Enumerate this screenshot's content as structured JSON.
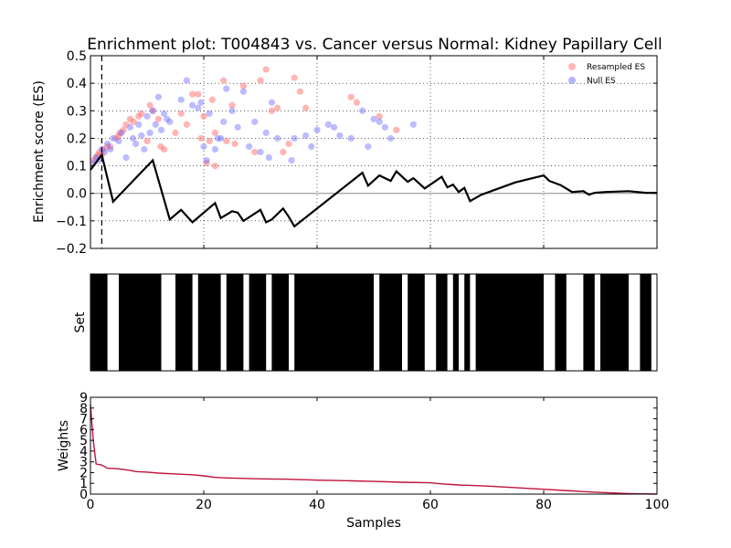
{
  "title": "Enrichment plot: T004843 vs. Cancer versus Normal: Kidney Papillary Cell",
  "colors": {
    "resampled": "#ff6b6b",
    "null": "#6b6bff",
    "es_line": "#000000",
    "weights_line": "#c0123c",
    "set_bar": "#000000"
  },
  "chart_data": [
    {
      "type": "line",
      "panel": "enrichment",
      "ylabel": "Enrichment score (ES)",
      "xlim": [
        0,
        100
      ],
      "ylim": [
        -0.2,
        0.5
      ],
      "yticks": [
        "0.5",
        "0.4",
        "0.3",
        "0.2",
        "0.1",
        "0.0",
        "−0.1",
        "−0.2"
      ],
      "ytick_values": [
        0.5,
        0.4,
        0.3,
        0.2,
        0.1,
        0.0,
        -0.1,
        -0.2
      ],
      "grid": true,
      "legend": {
        "placement": "top-right",
        "entries": [
          "Resampled ES",
          "Null ES"
        ]
      },
      "max_es_x": 2,
      "es_curve": {
        "x": [
          0,
          2,
          4,
          11,
          14,
          16,
          18,
          22,
          23,
          25,
          26,
          27,
          30,
          31,
          32,
          34,
          35,
          36,
          48,
          49,
          51,
          53,
          54,
          56,
          57,
          59,
          62,
          63,
          64,
          65,
          66,
          67,
          69,
          71,
          75,
          80,
          81,
          83,
          85,
          87,
          88,
          89,
          91,
          95,
          98,
          100
        ],
        "y": [
          0.085,
          0.14,
          -0.03,
          0.12,
          -0.095,
          -0.06,
          -0.105,
          -0.035,
          -0.09,
          -0.065,
          -0.07,
          -0.1,
          -0.06,
          -0.105,
          -0.095,
          -0.055,
          -0.085,
          -0.12,
          0.075,
          0.028,
          0.065,
          0.045,
          0.08,
          0.042,
          0.055,
          0.018,
          0.06,
          0.022,
          0.032,
          0.005,
          0.02,
          -0.028,
          -0.005,
          0.01,
          0.04,
          0.065,
          0.045,
          0.03,
          0.005,
          0.008,
          -0.005,
          0.002,
          0.005,
          0.008,
          0.002,
          0.002
        ]
      },
      "resampled_es": {
        "x": [
          0.5,
          1,
          1.3,
          1.6,
          2,
          2.3,
          3,
          3.5,
          4.5,
          5,
          5.2,
          5.8,
          6.3,
          7,
          7.6,
          8.5,
          9,
          10,
          10.5,
          11,
          12,
          12.4,
          13,
          15,
          16,
          17,
          18,
          19,
          19.5,
          20,
          20.5,
          21,
          21.5,
          22,
          22,
          23.5,
          24,
          25,
          25.5,
          27,
          29,
          30,
          31,
          32,
          33,
          34,
          35,
          36,
          37,
          38,
          46,
          47,
          51,
          54
        ],
        "y": [
          0.12,
          0.13,
          0.14,
          0.15,
          0.14,
          0.16,
          0.17,
          0.17,
          0.2,
          0.21,
          0.22,
          0.23,
          0.25,
          0.27,
          0.26,
          0.28,
          0.29,
          0.19,
          0.32,
          0.3,
          0.27,
          0.17,
          0.16,
          0.22,
          0.29,
          0.25,
          0.36,
          0.36,
          0.2,
          0.28,
          0.11,
          0.19,
          0.34,
          0.1,
          0.22,
          0.41,
          0.19,
          0.32,
          0.18,
          0.39,
          0.15,
          0.41,
          0.45,
          0.3,
          0.31,
          0.15,
          0.18,
          0.42,
          0.37,
          0.31,
          0.35,
          0.33,
          0.28,
          0.23
        ]
      },
      "null_es": {
        "x": [
          0.5,
          1,
          1.5,
          2,
          2.5,
          3,
          3.5,
          4,
          5,
          5.5,
          6.3,
          7,
          7.5,
          8,
          8.5,
          9,
          9.5,
          10,
          10.5,
          11,
          11.5,
          12,
          12.5,
          13,
          13.5,
          14,
          16,
          17,
          18,
          19,
          19.5,
          20,
          20.5,
          21,
          22,
          22.5,
          23,
          23.5,
          24,
          25,
          26,
          27,
          28,
          29,
          30,
          31,
          31.5,
          32,
          33,
          35.5,
          36,
          38,
          39,
          40,
          42,
          43,
          44,
          46,
          48,
          49,
          50,
          51,
          52,
          53,
          57
        ],
        "y": [
          0.11,
          0.13,
          0.12,
          0.16,
          0.15,
          0.18,
          0.16,
          0.2,
          0.19,
          0.22,
          0.13,
          0.24,
          0.2,
          0.18,
          0.25,
          0.21,
          0.16,
          0.28,
          0.22,
          0.3,
          0.25,
          0.35,
          0.23,
          0.29,
          0.27,
          0.26,
          0.34,
          0.41,
          0.32,
          0.31,
          0.33,
          0.17,
          0.12,
          0.29,
          0.16,
          0.2,
          0.2,
          0.26,
          0.38,
          0.3,
          0.24,
          0.37,
          0.17,
          0.26,
          0.15,
          0.22,
          0.13,
          0.33,
          0.2,
          0.12,
          0.2,
          0.21,
          0.17,
          0.23,
          0.25,
          0.24,
          0.21,
          0.2,
          0.3,
          0.17,
          0.27,
          0.26,
          0.24,
          0.2,
          0.25
        ]
      }
    },
    {
      "type": "bar",
      "panel": "set",
      "ylabel": "Set",
      "xlim": [
        0,
        100
      ],
      "white_gaps": [
        [
          3,
          5
        ],
        [
          12.5,
          15
        ],
        [
          18,
          19
        ],
        [
          23,
          24
        ],
        [
          27,
          28
        ],
        [
          31,
          32
        ],
        [
          35,
          36
        ],
        [
          50,
          51
        ],
        [
          55,
          56
        ],
        [
          59,
          61
        ],
        [
          63,
          64
        ],
        [
          65,
          66
        ],
        [
          67,
          68
        ],
        [
          80,
          82
        ],
        [
          84,
          87
        ],
        [
          89,
          90
        ],
        [
          95,
          97
        ],
        [
          99,
          100
        ]
      ]
    },
    {
      "type": "line",
      "panel": "weights",
      "xlabel": "Samples",
      "ylabel": "Weights",
      "xlim": [
        0,
        100
      ],
      "ylim": [
        0,
        9
      ],
      "xticks": [
        "0",
        "20",
        "40",
        "60",
        "80",
        "100"
      ],
      "xtick_values": [
        0,
        20,
        40,
        60,
        80,
        100
      ],
      "yticks": [
        "9",
        "8",
        "7",
        "6",
        "5",
        "4",
        "3",
        "2",
        "1",
        "0"
      ],
      "ytick_values": [
        9,
        8,
        7,
        6,
        5,
        4,
        3,
        2,
        1,
        0
      ],
      "x": [
        0,
        0.5,
        1,
        2,
        3,
        5,
        7,
        8,
        10,
        12,
        15,
        18,
        20,
        22,
        24,
        30,
        35,
        40,
        45,
        50,
        55,
        60,
        62,
        65,
        70,
        75,
        80,
        85,
        88,
        90,
        95,
        100
      ],
      "y": [
        8.3,
        5.0,
        2.8,
        2.7,
        2.4,
        2.35,
        2.2,
        2.1,
        2.05,
        1.95,
        1.88,
        1.8,
        1.7,
        1.55,
        1.5,
        1.42,
        1.38,
        1.3,
        1.25,
        1.18,
        1.1,
        1.05,
        0.95,
        0.85,
        0.75,
        0.6,
        0.45,
        0.3,
        0.2,
        0.15,
        0.05,
        0.0
      ]
    }
  ]
}
